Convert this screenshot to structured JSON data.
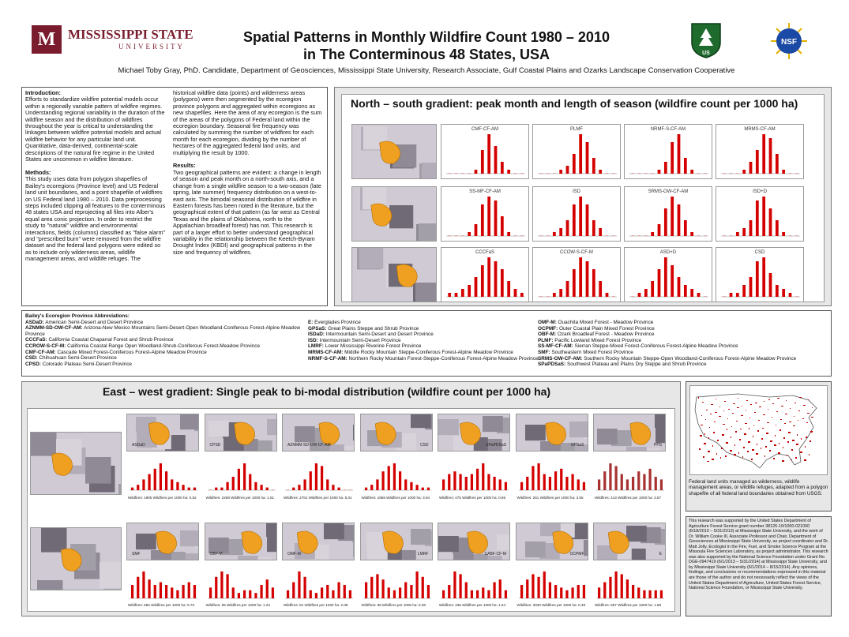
{
  "header": {
    "university_name": "MISSISSIPPI STATE",
    "university_sub": "UNIVERSITY",
    "logo_letter": "M",
    "title_line1": "Spatial Patterns in Monthly Wildfire Count 1980 – 2010",
    "title_line2": "in The Conterminous 48 States, USA",
    "authors": "Michael Toby Gray, PhD. Candidate, Department of Geosciences, Mississippi State University, Research Associate, Gulf Coastal Plains and Ozarks Landscape Conservation Cooperative",
    "usfs_text": "FOREST SERVICE",
    "usfs_sub": "U.S. DEPARTMENT OF AGRICULTURE",
    "usfs_letters": "US",
    "nsf_text": "NSF"
  },
  "intro": {
    "heading": "Introduction:",
    "body": "Efforts to standardize wildfire potential models occur within a regionally variable pattern of wildfire regimes. Understanding regional variability in the duration of the wildfire season and the distribution of wildfires throughout the year is critical to understanding the linkages between wildfire potential models and actual wildfire behavior for any particular land unit. Quantitative, data-derived, continental-scale descriptions of the natural fire regime in the United States are uncommon in wildfire literature."
  },
  "methods": {
    "heading": "Methods:",
    "body": "This study uses data from polygon shapefiles of Bailey's ecoregions (Province level) and US Federal land unit boundaries, and a point shapefile of wildfires on US Federal land 1980 – 2010. Data preprocessing steps included clipping all features to the conterminous 48 states USA and reprojecting all files into Alber's equal area conic projection. In order to restrict the study to \"natural\" wildfire and environmental interactions, fields (columns) classified as \"false alarm\" and \"prescribed burn\" were removed from the wildfire dataset and the federal land polygons were edited so as to include only wilderness areas, wildlife management areas, and wildlife refuges. The",
    "body_cont": "historical wildfire data (points) and wilderness areas (polygons) were then segmented by the ecoregion province polygons and aggregated within ecoregions as new shapefiles. Here the area of any ecoregion is the sum of the areas of the polygons of Federal land within the ecoregion boundary. Seasonal fire frequency was calculated by summing the number of wildfires for each month for each ecoregion, dividing by the number of hectares of the aggregated federal land units, and multiplying the result by 1000."
  },
  "results": {
    "heading": "Results:",
    "body": "Two geographical patterns are evident: a change in length of season and peak month on a north-south axis, and a change from a single wildfire season to a two-season (late spring, late summer) frequency distribution on a west-to-east axis. The bimodal seasonal distribution of wildfire in Eastern forests has been noted in the literature, but the geographical extent of that pattern (as far west as Central Texas and the plains of Oklahoma, north to the Appalachian broadleaf forest) has not. This research is part of a larger effort to better understand geographical variability in the relationship between the Keetch-Byram Drought Index (KBDI) and geographical patterns in the size and frequency of wildfires."
  },
  "ns_panel": {
    "title": "North – south gradient: peak month and length of season (wildfire count per 1000 ha)",
    "rows": [
      {
        "charts": [
          {
            "label": "CMF-CF-AM",
            "values": [
              0,
              0,
              0,
              0,
              0.1,
              0.6,
              1,
              0.7,
              0.3,
              0.1,
              0,
              0
            ]
          },
          {
            "label": "PLMF",
            "values": [
              0,
              0,
              0,
              0.1,
              0.2,
              0.5,
              1,
              0.8,
              0.4,
              0.1,
              0,
              0
            ]
          },
          {
            "label": "NRMF-S-CF-AM",
            "values": [
              0,
              0,
              0,
              0,
              0.1,
              0.3,
              0.8,
              1,
              0.4,
              0.1,
              0,
              0
            ]
          },
          {
            "label": "MRMS-CF-AM",
            "values": [
              0,
              0,
              0,
              0.1,
              0.3,
              0.6,
              1,
              0.9,
              0.5,
              0.1,
              0,
              0
            ]
          }
        ]
      },
      {
        "charts": [
          {
            "label": "SS-MF-CF-AM",
            "values": [
              0,
              0,
              0,
              0.1,
              0.3,
              0.8,
              1,
              0.9,
              0.5,
              0.1,
              0,
              0
            ]
          },
          {
            "label": "ISD",
            "values": [
              0,
              0,
              0.1,
              0.2,
              0.4,
              0.8,
              1,
              0.8,
              0.4,
              0.2,
              0,
              0
            ]
          },
          {
            "label": "SRMS-OW-CF-AM",
            "values": [
              0,
              0,
              0,
              0.1,
              0.3,
              0.7,
              1,
              0.8,
              0.4,
              0.1,
              0,
              0
            ]
          },
          {
            "label": "ISD+D",
            "values": [
              0,
              0,
              0.1,
              0.2,
              0.4,
              0.9,
              1,
              0.7,
              0.4,
              0.1,
              0,
              0
            ]
          }
        ]
      },
      {
        "charts": [
          {
            "label": "CCCFaS",
            "values": [
              0.1,
              0.1,
              0.2,
              0.3,
              0.5,
              0.8,
              1,
              0.9,
              0.7,
              0.4,
              0.2,
              0.1
            ]
          },
          {
            "label": "CCOW-S-CF-M",
            "values": [
              0,
              0,
              0.1,
              0.2,
              0.4,
              0.7,
              1,
              0.9,
              0.7,
              0.4,
              0.1,
              0
            ]
          },
          {
            "label": "ASD+D",
            "values": [
              0,
              0.1,
              0.2,
              0.4,
              0.7,
              1,
              0.8,
              0.5,
              0.3,
              0.2,
              0.1,
              0
            ]
          },
          {
            "label": "CSD",
            "values": [
              0,
              0.1,
              0.1,
              0.3,
              0.5,
              0.9,
              1,
              0.6,
              0.3,
              0.2,
              0.1,
              0
            ]
          }
        ]
      }
    ],
    "months": [
      "Jan",
      "Feb",
      "Mar",
      "Apr",
      "May",
      "Jun",
      "Jul",
      "Aug",
      "Sep",
      "Oct",
      "Nov",
      "Dec"
    ]
  },
  "abbreviations": {
    "heading": "Bailey's Ecoregion Province Abbreviations:",
    "col1": [
      {
        "code": "ASDaD:",
        "name": "American Semi-Desert and Desert Province"
      },
      {
        "code": "AZNMM-SD-OW-CF-AM:",
        "name": "Arizona-New Mexico Mountains Semi-Desert-Open Woodland-Coniferous Forest-Alpine Meadow Province"
      },
      {
        "code": "CCCFaS:",
        "name": "California Coastal Chaparral Forest and Shrub Province"
      },
      {
        "code": "CCROW-S-CF-M:",
        "name": "California Coastal Range Open Woodland-Shrub-Coniferous Forest-Meadow Province"
      },
      {
        "code": "CMF-CF-AM:",
        "name": "Cascade Mixed Forest-Coniferous Forest-Alpine Meadow Province"
      },
      {
        "code": "CSD:",
        "name": "Chihuahuan Semi-Desert Province"
      },
      {
        "code": "CPSD:",
        "name": "Colorado Plateau Semi-Desert Province"
      }
    ],
    "col2": [
      {
        "code": "E:",
        "name": "Everglades Province"
      },
      {
        "code": "GPSaS:",
        "name": "Great Plains Steppe and Shrub Province"
      },
      {
        "code": "ISDaD:",
        "name": "Intermountain Semi-Desert and Desert Province"
      },
      {
        "code": "ISD:",
        "name": "Intermountain Semi-Desert Province"
      },
      {
        "code": "LMRF:",
        "name": "Lower Mississippi Riverine Forest Province"
      },
      {
        "code": "MRMS-CF-AM:",
        "name": "Middle Rocky Mountain Steppe-Coniferous Forest-Alpine Meadow Province"
      },
      {
        "code": "NRMF-S-CF-AM:",
        "name": "Northern Rocky Mountain Forest-Steppe-Coniferous Forest-Alpine Meadow Province"
      }
    ],
    "col3": [
      {
        "code": "OMF-M:",
        "name": "Ouachita Mixed Forest - Meadow Province"
      },
      {
        "code": "OCPMF:",
        "name": "Outer Coastal Plain Mixed Forest Province"
      },
      {
        "code": "OBF-M:",
        "name": "Ozark Broadleaf Forest - Meadow Province"
      },
      {
        "code": "PLMF:",
        "name": "Pacific Lowland Mixed Forest Province"
      },
      {
        "code": "SS-MF-CF-AM:",
        "name": "Sierran Steppe-Mixed Forest-Coniferous Forest-Alpine Meadow Province"
      },
      {
        "code": "SMF:",
        "name": "Southeastern Mixed Forest Province"
      },
      {
        "code": "SRMS-OW-CF-AM:",
        "name": "Southern Rocky Mountain Steppe-Open Woodland-Coniferous Forest-Alpine Meadow Province"
      },
      {
        "code": "SPaPDSaS:",
        "name": "Southwest Plateau and Plains Dry Steppe and Shrub Province"
      }
    ]
  },
  "ew_panel": {
    "title": "East – west gradient: Single peak to bi-modal distribution (wildfire count per 1000 ha)",
    "row1": [
      {
        "label": "ASDaD",
        "stat": "Wildfires: 1905   Wildfires per 1000 ha: 0.52",
        "values": [
          0.1,
          0.2,
          0.4,
          0.6,
          0.8,
          1,
          0.7,
          0.4,
          0.3,
          0.2,
          0.1,
          0.1
        ]
      },
      {
        "label": "CPSD",
        "stat": "Wildfires: 2268   Wildfires per 1000 ha: 1.51",
        "values": [
          0,
          0.1,
          0.1,
          0.3,
          0.5,
          0.8,
          1,
          0.6,
          0.3,
          0.2,
          0.1,
          0
        ]
      },
      {
        "label": "AZNMM-SD-OW-CF-AM",
        "stat": "Wildfires: 2781   Wildfires per 1000 ha: 5.01",
        "values": [
          0,
          0.1,
          0.2,
          0.4,
          0.7,
          1,
          0.9,
          0.4,
          0.2,
          0.1,
          0,
          0
        ]
      },
      {
        "label": "CSD",
        "stat": "Wildfires: 1858   Wildfires per 1000 ha: 3.94",
        "values": [
          0.1,
          0.2,
          0.4,
          0.7,
          0.9,
          1,
          0.7,
          0.4,
          0.3,
          0.2,
          0.1,
          0.1
        ]
      },
      {
        "label": "SPaPDSaS",
        "stat": "Wildfires: 475   Wildfires per 1000 ha: 0.96",
        "values": [
          0.4,
          0.6,
          0.7,
          0.6,
          0.5,
          0.6,
          0.8,
          1,
          0.6,
          0.5,
          0.4,
          0.3
        ]
      },
      {
        "label": "GPSaS",
        "stat": "Wildfires: 261   Wildfires per 1000 ha: 3.55",
        "values": [
          0.3,
          0.5,
          0.9,
          1,
          0.6,
          0.5,
          0.7,
          0.8,
          0.5,
          0.6,
          0.4,
          0.3
        ]
      },
      {
        "label": "PPS",
        "stat": "Wildfires: 413   Wildfires per 1000 ha: 2.57",
        "values": [
          0.4,
          0.7,
          1,
          0.9,
          0.6,
          0.4,
          0.5,
          0.7,
          0.6,
          0.8,
          0.5,
          0.4
        ]
      }
    ],
    "row2": [
      {
        "label": "SMF",
        "stat": "Wildfires: 650   Wildfires per 1000 ha: 5.70",
        "values": [
          0.5,
          0.8,
          1,
          0.7,
          0.5,
          0.6,
          0.5,
          0.4,
          0.3,
          0.5,
          0.6,
          0.5
        ]
      },
      {
        "label": "OBF-M",
        "stat": "Wildfires: 55   Wildfires per 1000 ha: 1.24",
        "values": [
          0.4,
          0.8,
          1,
          0.9,
          0.4,
          0.2,
          0.3,
          0.3,
          0.2,
          0.5,
          0.7,
          0.4
        ]
      },
      {
        "label": "OMF-M",
        "stat": "Wildfires: 81   Wildfires per 1000 ha: 2.08",
        "values": [
          0.3,
          0.6,
          1,
          0.8,
          0.3,
          0.2,
          0.4,
          0.5,
          0.3,
          0.6,
          0.5,
          0.3
        ]
      },
      {
        "label": "LMRF",
        "stat": "Wildfires: 98   Wildfires per 1000 ha: 0.28",
        "values": [
          0.6,
          0.8,
          0.9,
          0.7,
          0.4,
          0.3,
          0.4,
          0.6,
          0.5,
          1,
          0.8,
          0.5
        ]
      },
      {
        "label": "CABF-CF-M",
        "stat": "Wildfires: 336   Wildfires per 1000 ha: 1.54",
        "values": [
          0.3,
          0.5,
          1,
          0.9,
          0.6,
          0.3,
          0.3,
          0.4,
          0.3,
          0.6,
          0.7,
          0.3
        ]
      },
      {
        "label": "OCPMF",
        "stat": "Wildfires: 3030   Wildfires per 1000 ha: 0.49",
        "values": [
          0.5,
          0.7,
          0.9,
          0.8,
          1,
          0.6,
          0.5,
          0.4,
          0.3,
          0.4,
          0.5,
          0.5
        ]
      },
      {
        "label": "E",
        "stat": "Wildfires: 897   Wildfires per 1000 ha: 1.98",
        "values": [
          0.4,
          0.6,
          0.8,
          1,
          0.9,
          0.7,
          0.5,
          0.4,
          0.3,
          0.3,
          0.3,
          0.3
        ]
      }
    ]
  },
  "map_caption": "Federal land units managed as wilderness, wildlife management areas, or wildlife refuges, adapted from a polygon shapefile of all federal land boundaries obtained from USGS.",
  "acknowledgment": "This research was supported by the United States Department of Agriculture Forest Service grant number 38126-10/1000-021000 (6/18/2010 – 5/31/2013) at Mississippi State University, and the work of Dr. William Cooke III, Associate Professor and Chair, Department of Geosciences at Mississippi State University, as project coordinator and Dr. Matt Jolly, Ecologist in the Fire, Fuel, and Smoke Science Program at the Missoula Fire Sciences Laboratory, as project administrator. This research was also supported by the National Science Foundation under Grant No. DGE-0947419 (6/1/2013 – 5/31/2014) at Mississippi State University, and by Mississippi State University (6/1/2014 – 8/15/2014). Any opinions, findings, and conclusions or recommendations expressed in this material are those of the author and do not necessarily reflect the views of the United States Department of Agriculture, United States Forest Service, National Science Foundation, or Mississippi State University.",
  "colors": {
    "bar": "#d40000",
    "orange": "#f0a020",
    "maroon": "#7a1c2e",
    "panel": "#e7e7e7"
  }
}
